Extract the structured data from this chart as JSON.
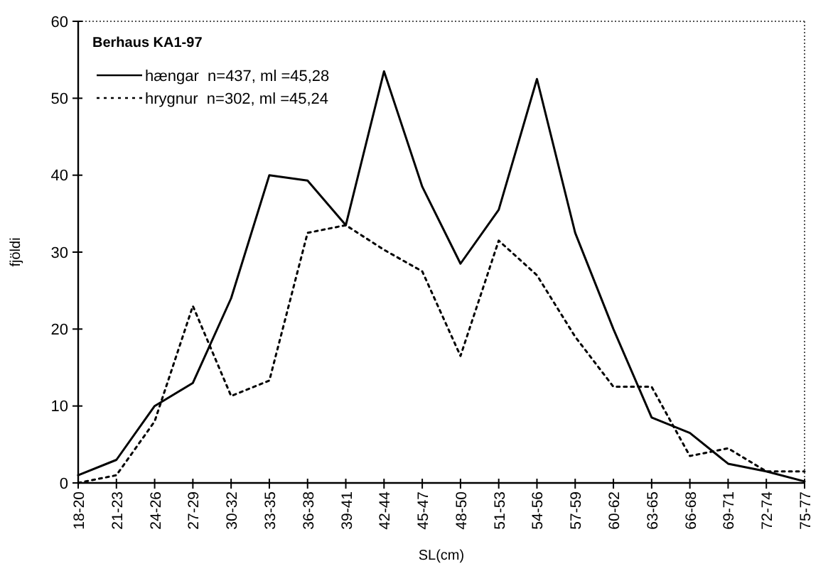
{
  "chart_data": {
    "type": "line",
    "legend_title": "Berhaus KA1-97",
    "xlabel": "SL(cm)",
    "ylabel": "fjöldi",
    "categories": [
      "18-20",
      "21-23",
      "24-26",
      "27-29",
      "30-32",
      "33-35",
      "36-38",
      "39-41",
      "42-44",
      "45-47",
      "48-50",
      "51-53",
      "54-56",
      "57-59",
      "60-62",
      "63-65",
      "66-68",
      "69-71",
      "72-74",
      "75-77"
    ],
    "series": [
      {
        "name": "hængar  n=437, ml =45,28",
        "color": "#000000",
        "line_style": "solid",
        "values": [
          1,
          3,
          10,
          13,
          24,
          40,
          39.3,
          33.5,
          53.5,
          38.5,
          28.5,
          35.5,
          52.5,
          32.5,
          20,
          8.5,
          6.5,
          2.5,
          1.5,
          0.2
        ]
      },
      {
        "name": "hrygnur  n=302, ml =45,24",
        "color": "#000000",
        "line_style": "dotted",
        "values": [
          0,
          1,
          8,
          23,
          11.3,
          13.3,
          32.5,
          33.5,
          30.3,
          27.5,
          16.5,
          31.5,
          27,
          19,
          12.5,
          12.5,
          3.5,
          4.5,
          1.5,
          1.5
        ]
      }
    ],
    "ylim": [
      0,
      60
    ],
    "yticks": [
      0,
      10,
      20,
      30,
      40,
      50,
      60
    ],
    "grid": false,
    "legend": "top left",
    "marker": "none"
  }
}
